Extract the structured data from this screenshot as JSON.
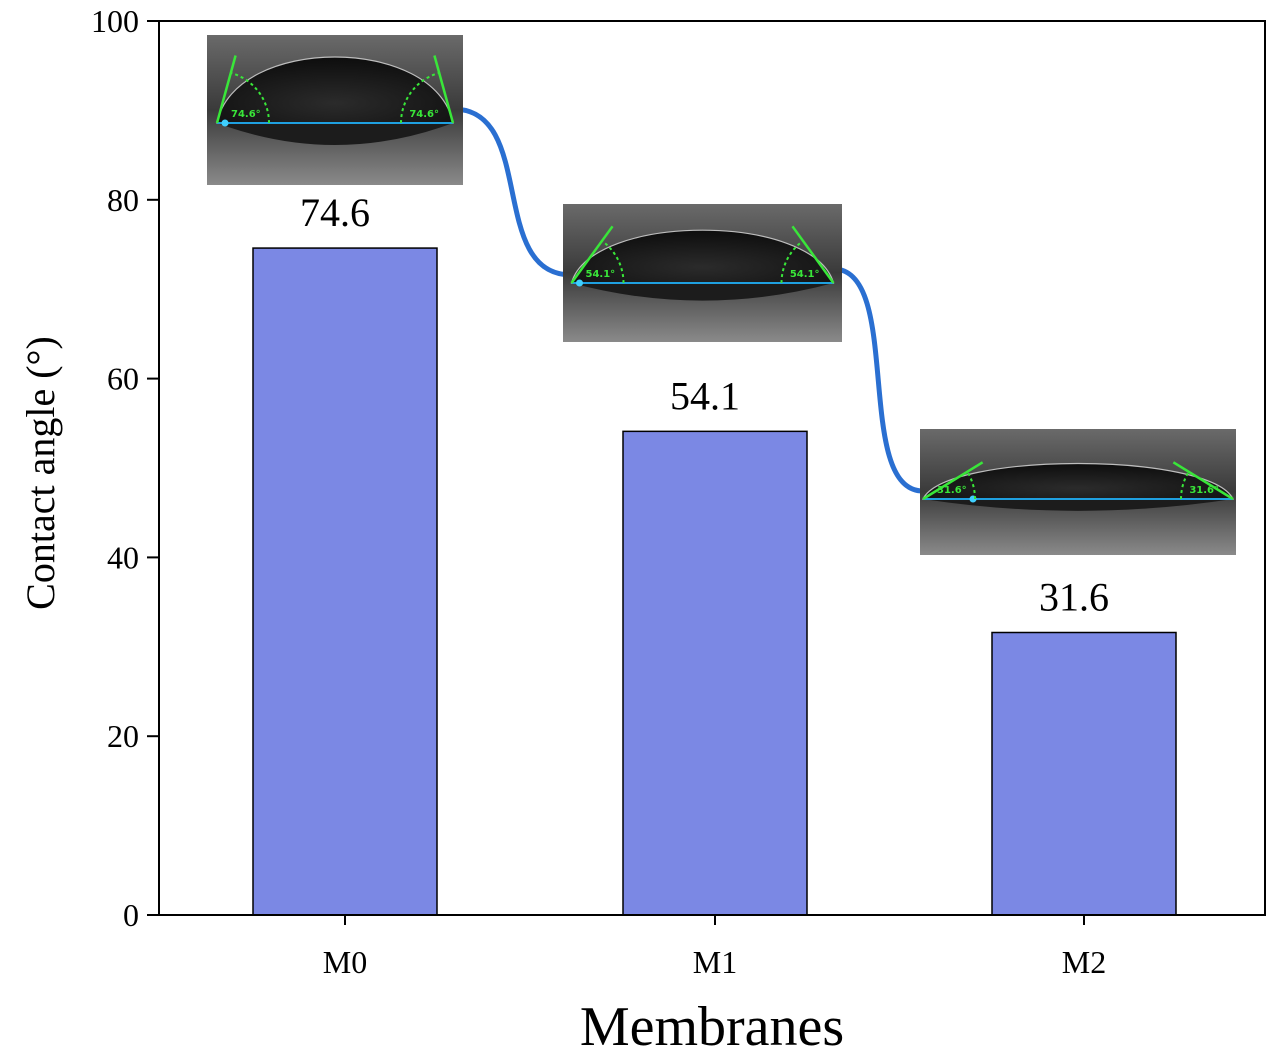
{
  "chart_data": {
    "type": "bar",
    "categories": [
      "M0",
      "M1",
      "M2"
    ],
    "values": [
      74.6,
      54.1,
      31.6
    ],
    "data_labels": [
      "74.6",
      "54.1",
      "31.6"
    ],
    "xlabel": "Membranes",
    "ylabel": "Contact angle (°)",
    "ylim": [
      0,
      100
    ],
    "yticks": [
      "0",
      "20",
      "40",
      "60",
      "80",
      "100"
    ],
    "grid": false,
    "bar_color": "#7b88e4",
    "bar_edge_color": "#000000",
    "connector_color": "#2a6fd1",
    "droplet_insets": [
      {
        "category": "M0",
        "angle_text": "74.6°"
      },
      {
        "category": "M1",
        "angle_text": "54.1°"
      },
      {
        "category": "M2",
        "angle_text": "31.6°"
      }
    ]
  }
}
